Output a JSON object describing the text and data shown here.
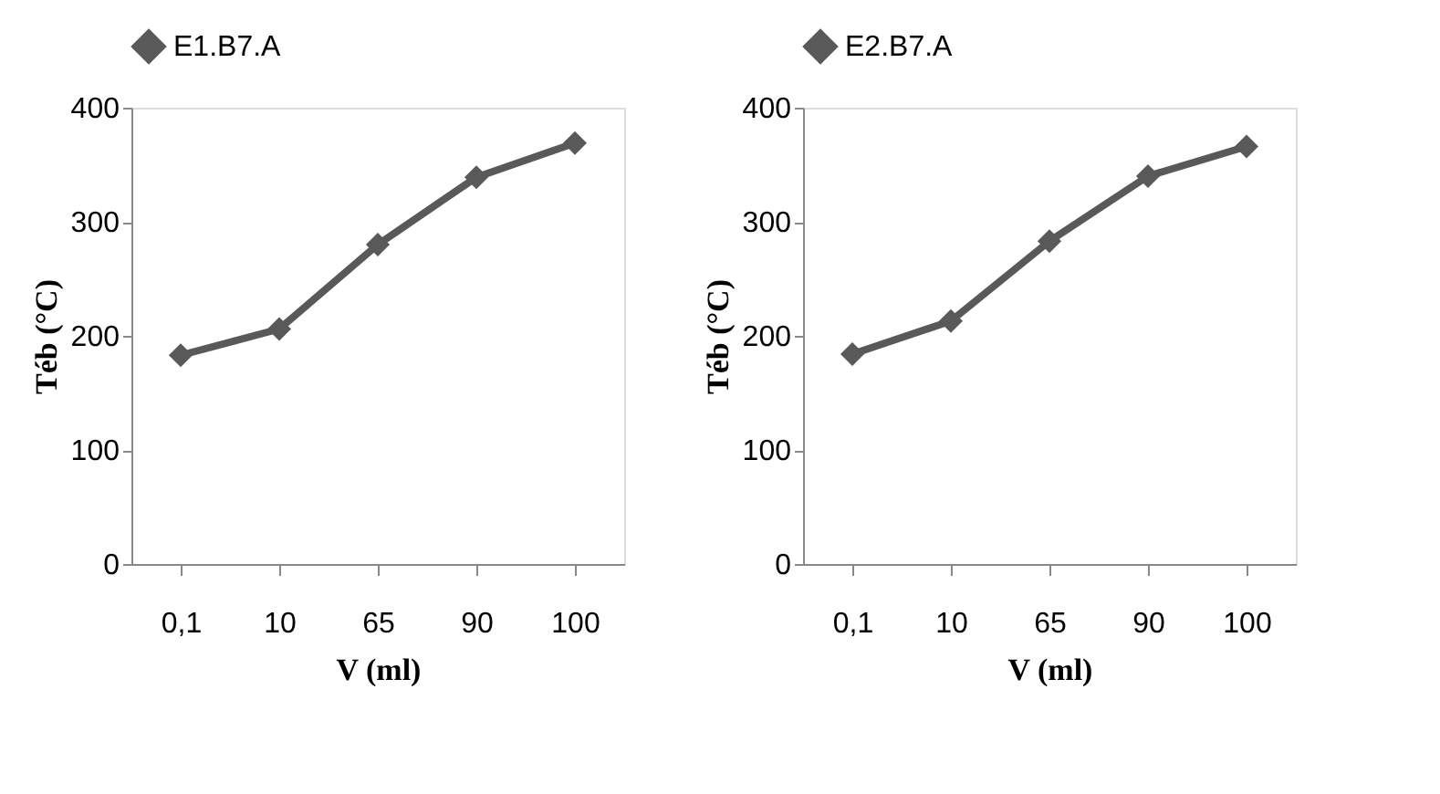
{
  "chart_data": [
    {
      "type": "line",
      "categories": [
        "0,1",
        "10",
        "65",
        "90",
        "100"
      ],
      "xlabel": "V (ml)",
      "ylabel": "Téb (°C)",
      "ylim": [
        0,
        400
      ],
      "yticks": [
        0,
        100,
        200,
        300,
        400
      ],
      "grid": false,
      "legend": "top",
      "marker": "diamond",
      "line_style": "solid",
      "series": [
        {
          "name": "E1.B7.A",
          "color": "#595959",
          "values": [
            183,
            206,
            280,
            339,
            369
          ]
        }
      ]
    },
    {
      "type": "line",
      "categories": [
        "0,1",
        "10",
        "65",
        "90",
        "100"
      ],
      "xlabel": "V (ml)",
      "ylabel": "Téb (°C)",
      "ylim": [
        0,
        400
      ],
      "yticks": [
        0,
        100,
        200,
        300,
        400
      ],
      "grid": false,
      "legend": "top",
      "marker": "diamond",
      "line_style": "solid",
      "series": [
        {
          "name": "E2.B7.A",
          "color": "#595959",
          "values": [
            184,
            213,
            283,
            340,
            366
          ]
        }
      ]
    }
  ]
}
